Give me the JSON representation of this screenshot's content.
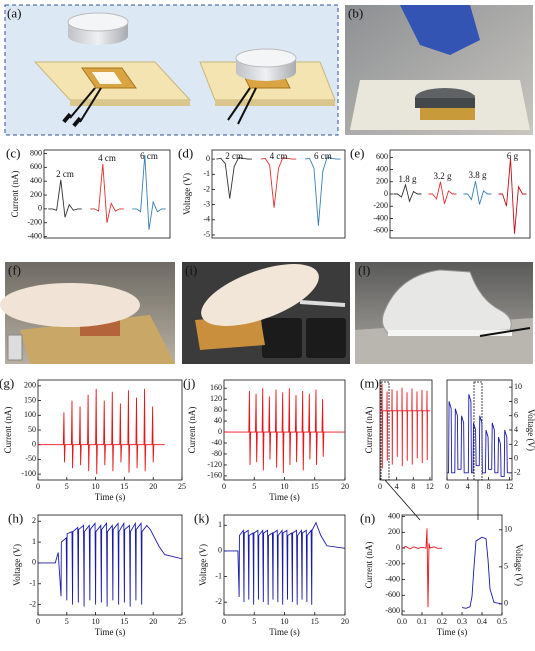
{
  "photos": [
    "(a)",
    "(b)",
    "(f)",
    "(i)",
    "(l)"
  ],
  "charts": [
    {
      "type": "line",
      "label": "(c)",
      "ylabel": "Current (nA)",
      "ylim": [
        -420,
        850
      ],
      "yticks": [
        -400,
        -200,
        0,
        200,
        400,
        600,
        800
      ],
      "series": [
        {
          "name": "2 cm",
          "color": "#333333",
          "values": [
            0,
            0,
            -20,
            420,
            -120,
            60,
            -20,
            0,
            0
          ]
        },
        {
          "name": "4 cm",
          "color": "#e03030",
          "values": [
            0,
            0,
            -30,
            650,
            -200,
            80,
            -30,
            0,
            0
          ]
        },
        {
          "name": "6 cm",
          "color": "#3a7fb5",
          "values": [
            0,
            0,
            -40,
            780,
            -300,
            100,
            -40,
            0,
            0
          ]
        }
      ]
    },
    {
      "type": "line",
      "label": "(d)",
      "ylabel": "Voltage (V)",
      "ylim": [
        -5.2,
        0.6
      ],
      "yticks": [
        0,
        -1,
        -2,
        -3,
        -4,
        -5
      ],
      "series": [
        {
          "name": "2 cm",
          "color": "#333333",
          "values": [
            0,
            0.05,
            -0.3,
            -2.6,
            -0.5,
            0.1,
            0.05,
            0,
            0
          ]
        },
        {
          "name": "4 cm",
          "color": "#e03030",
          "values": [
            0,
            0.05,
            -0.4,
            -3.2,
            -0.6,
            0.1,
            0.05,
            0,
            0
          ]
        },
        {
          "name": "6 cm",
          "color": "#3a7fb5",
          "values": [
            0,
            0.05,
            -0.6,
            -4.4,
            -0.8,
            0.15,
            0.05,
            0,
            0
          ]
        }
      ]
    },
    {
      "type": "line",
      "label": "(e)",
      "ylim": [
        -720,
        720
      ],
      "yticks": [
        -600,
        -400,
        -200,
        0,
        200,
        400,
        600
      ],
      "series": [
        {
          "name": "1.8 g",
          "color": "#333333",
          "values": [
            0,
            0,
            -50,
            150,
            -120,
            40,
            0,
            0
          ]
        },
        {
          "name": "3.2 g",
          "color": "#e03030",
          "values": [
            0,
            0,
            -80,
            200,
            -160,
            50,
            0,
            0
          ]
        },
        {
          "name": "3.8 g",
          "color": "#3a7fb5",
          "values": [
            0,
            0,
            -90,
            210,
            -170,
            50,
            0,
            0
          ]
        },
        {
          "name": "6 g",
          "color": "#c0101a",
          "values": [
            0,
            0,
            -200,
            580,
            -650,
            120,
            0,
            0
          ]
        }
      ]
    },
    {
      "type": "line",
      "label": "(g)",
      "ylabel": "Current (nA)",
      "xlabel": "Time (s)",
      "xlim": [
        0,
        25
      ],
      "xticks": [
        0,
        5,
        10,
        15,
        20,
        25
      ],
      "ylim": [
        -120,
        220
      ],
      "yticks": [
        -100,
        -50,
        0,
        50,
        100,
        150,
        200
      ],
      "series": [
        {
          "color": "#e8141a",
          "x": [
            0,
            4.4,
            4.5,
            4.6,
            4.7,
            5.8,
            5.9,
            6.0,
            6.1,
            7.2,
            7.3,
            7.4,
            7.5,
            8.6,
            8.7,
            8.8,
            8.9,
            10.0,
            10.1,
            10.2,
            10.3,
            11.4,
            11.5,
            11.6,
            11.7,
            12.8,
            12.9,
            13.0,
            13.1,
            14.2,
            14.3,
            14.4,
            14.5,
            15.6,
            15.7,
            15.8,
            15.9,
            17.0,
            17.1,
            17.2,
            17.3,
            18.4,
            18.5,
            18.6,
            18.7,
            19.8,
            19.9,
            20.0,
            20.1,
            22
          ],
          "values": [
            0,
            0,
            110,
            -60,
            0,
            0,
            150,
            -80,
            0,
            0,
            130,
            -70,
            0,
            0,
            170,
            -90,
            0,
            0,
            190,
            -100,
            0,
            0,
            150,
            -70,
            0,
            0,
            180,
            -90,
            0,
            0,
            140,
            -60,
            0,
            0,
            185,
            -95,
            0,
            0,
            160,
            -80,
            0,
            0,
            190,
            -90,
            0,
            0,
            130,
            -60,
            0,
            0
          ]
        }
      ]
    },
    {
      "type": "line",
      "label": "(j)",
      "ylabel": "Current (nA)",
      "xlabel": "Time (s)",
      "xlim": [
        0,
        20
      ],
      "xticks": [
        0,
        5,
        10,
        15,
        20
      ],
      "ylim": [
        -175,
        190
      ],
      "yticks": [
        -160,
        -120,
        -80,
        -40,
        0,
        40,
        80,
        120,
        160
      ],
      "series": [
        {
          "color": "#e8141a",
          "x": [
            0,
            4.1,
            4.2,
            4.3,
            4.4,
            5.2,
            5.3,
            5.4,
            5.5,
            6.3,
            6.4,
            6.5,
            6.6,
            7.4,
            7.5,
            7.6,
            7.7,
            8.5,
            8.6,
            8.7,
            8.8,
            9.6,
            9.7,
            9.8,
            9.9,
            10.7,
            10.8,
            10.9,
            11.0,
            11.8,
            11.9,
            12.0,
            12.1,
            12.9,
            13.0,
            13.1,
            13.2,
            14.0,
            14.1,
            14.2,
            14.3,
            15.1,
            15.2,
            15.3,
            15.4,
            16.2,
            16.3,
            16.4,
            16.5,
            20
          ],
          "values": [
            0,
            0,
            150,
            -120,
            0,
            0,
            140,
            -110,
            0,
            0,
            160,
            -140,
            0,
            0,
            130,
            -100,
            0,
            0,
            155,
            -130,
            0,
            0,
            145,
            -150,
            0,
            0,
            160,
            -120,
            0,
            0,
            135,
            -110,
            0,
            0,
            150,
            -140,
            0,
            0,
            140,
            -100,
            0,
            0,
            155,
            -120,
            0,
            0,
            120,
            -90,
            0,
            0
          ]
        }
      ]
    },
    {
      "type": "line",
      "label": "(m)",
      "ylabel": "Current (nA)",
      "xlim": [
        0,
        12.5
      ],
      "xticks": [
        0,
        4,
        8,
        12
      ],
      "ylim": [
        -900,
        400
      ],
      "series": [
        {
          "color": "#e8141a",
          "x": [
            0,
            0.45,
            0.5,
            0.55,
            0.6,
            1.65,
            1.7,
            1.75,
            1.8,
            2.85,
            2.9,
            2.95,
            3.0,
            4.05,
            4.1,
            4.15,
            4.2,
            5.25,
            5.3,
            5.35,
            5.4,
            6.45,
            6.5,
            6.55,
            6.6,
            7.65,
            7.7,
            7.75,
            7.8,
            8.85,
            8.9,
            8.95,
            9.0,
            10.05,
            10.1,
            10.15,
            10.2,
            11.25,
            11.3,
            11.35,
            11.4,
            12
          ],
          "values": [
            0,
            0,
            350,
            -750,
            0,
            0,
            250,
            -650,
            0,
            0,
            280,
            -700,
            0,
            0,
            260,
            -600,
            0,
            0,
            300,
            -720,
            0,
            0,
            240,
            -650,
            0,
            0,
            290,
            -700,
            0,
            0,
            250,
            -620,
            0,
            0,
            270,
            -680,
            0,
            0,
            260,
            -640,
            0,
            0
          ]
        }
      ]
    },
    {
      "type": "line",
      "y2label": "Voltage (V)",
      "xlim": [
        0,
        12.5
      ],
      "xticks": [
        0,
        4,
        8,
        12
      ],
      "y2lim": [
        -3,
        11
      ],
      "y2ticks": [
        -2,
        0,
        2,
        4,
        6,
        8,
        10
      ],
      "series": [
        {
          "color": "#1a1aa8",
          "axis": "y2",
          "x": [
            0,
            0.3,
            0.4,
            0.8,
            0.9,
            1.5,
            1.6,
            2.0,
            2.1,
            2.7,
            2.8,
            3.2,
            3.3,
            4.1,
            4.2,
            4.6,
            4.7,
            5.0,
            5.1,
            5.5,
            5.6,
            6.2,
            6.3,
            6.7,
            6.8,
            7.4,
            7.5,
            7.9,
            8.0,
            8.6,
            8.7,
            9.1,
            9.2,
            9.8,
            9.9,
            10.3,
            10.4,
            11.0,
            11.1,
            11.5,
            11.6,
            12
          ],
          "values": [
            -2,
            -2,
            8,
            7,
            -2,
            -2,
            7,
            6,
            -1.5,
            -1.5,
            6,
            5,
            -2,
            -2,
            9,
            8,
            -2,
            -2,
            5,
            4,
            -1,
            -1,
            6,
            5,
            -2,
            -2,
            4,
            3,
            -1.5,
            -1.5,
            5,
            4,
            -2,
            -2,
            3,
            2,
            -2.5,
            -2.5,
            4,
            3,
            -2,
            -2
          ]
        }
      ]
    },
    {
      "type": "line",
      "label": "(h)",
      "ylabel": "Voltage (V)",
      "xlabel": "Time (s)",
      "xlim": [
        0,
        25
      ],
      "xticks": [
        0,
        5,
        10,
        15,
        20,
        25
      ],
      "ylim": [
        -2.5,
        2.3
      ],
      "yticks": [
        -2,
        -1,
        0,
        1,
        2
      ],
      "series": [
        {
          "color": "#1a1aa8",
          "x": [
            0,
            3,
            3.5,
            4,
            4.05,
            4.9,
            5,
            5.05,
            5.9,
            6,
            6.05,
            6.9,
            7,
            7.05,
            7.9,
            8,
            8.05,
            8.9,
            9,
            9.05,
            9.9,
            10,
            10.05,
            10.9,
            11,
            11.05,
            11.9,
            12,
            12.05,
            12.9,
            13,
            13.05,
            13.9,
            14,
            14.05,
            14.9,
            15,
            15.05,
            15.9,
            16,
            16.05,
            16.9,
            17,
            17.05,
            17.9,
            18,
            18.05,
            18.9,
            19.5,
            21,
            22,
            25
          ],
          "values": [
            0,
            0,
            0.5,
            -1.6,
            1.0,
            1.2,
            -1.8,
            1.4,
            1.5,
            -2.0,
            1.5,
            1.7,
            -1.9,
            1.6,
            1.8,
            -2.1,
            1.5,
            1.8,
            -1.8,
            1.6,
            1.9,
            -2.0,
            1.5,
            1.8,
            -1.9,
            1.6,
            1.9,
            -2.1,
            1.5,
            1.8,
            -1.8,
            1.6,
            1.9,
            -2.0,
            1.5,
            1.9,
            -1.9,
            1.6,
            1.8,
            -2.1,
            1.5,
            1.9,
            -1.8,
            1.6,
            1.9,
            -2.0,
            1.5,
            1.8,
            1.6,
            0.8,
            0.4,
            0.2
          ]
        }
      ]
    },
    {
      "type": "line",
      "label": "(k)",
      "ylabel": "Voltage (V)",
      "xlabel": "Time (s)",
      "xlim": [
        0,
        20
      ],
      "xticks": [
        0,
        5,
        10,
        15,
        20
      ],
      "ylim": [
        -2.5,
        1.4
      ],
      "yticks": [
        -2,
        -1,
        0,
        1
      ],
      "series": [
        {
          "color": "#1a1aa8",
          "x": [
            0,
            2.3,
            2.5,
            2.55,
            3.2,
            3.3,
            3.35,
            4.0,
            4.1,
            4.15,
            4.8,
            4.9,
            4.95,
            5.6,
            5.7,
            5.75,
            6.4,
            6.5,
            6.55,
            7.2,
            7.3,
            7.35,
            8.0,
            8.1,
            8.15,
            8.8,
            8.9,
            8.95,
            9.6,
            9.7,
            9.75,
            10.4,
            10.5,
            10.55,
            11.2,
            11.3,
            11.35,
            12.0,
            12.1,
            12.15,
            12.8,
            12.9,
            12.95,
            13.6,
            13.7,
            13.75,
            14.4,
            14.5,
            14.55,
            15.2,
            16,
            17,
            20
          ],
          "values": [
            0,
            0,
            -1.8,
            0.6,
            0.8,
            -2.0,
            0.7,
            0.8,
            -1.9,
            0.6,
            0.7,
            -2.1,
            0.7,
            0.8,
            -1.9,
            0.6,
            0.8,
            -2.0,
            0.7,
            0.8,
            -2.1,
            0.6,
            0.7,
            -1.9,
            0.7,
            0.8,
            -2.0,
            0.6,
            0.8,
            -2.1,
            0.7,
            0.8,
            -1.9,
            0.6,
            0.7,
            -2.0,
            0.7,
            0.8,
            -2.1,
            0.6,
            0.8,
            -1.9,
            0.7,
            0.8,
            -2.0,
            0.6,
            0.8,
            -2.1,
            0.8,
            1.1,
            0.6,
            0.2,
            0.1
          ]
        }
      ]
    },
    {
      "type": "line",
      "label": "(n)",
      "ylabel": "Current (nA)",
      "y2label": "Voltage (V)",
      "xlabel": "Time (s)",
      "xlim": [
        0,
        0.5
      ],
      "xticks": [
        {
          "value": 0,
          "label": "0.0"
        },
        0.1,
        0.2,
        0.3,
        0.4,
        0.5
      ],
      "ylim": [
        -850,
        420
      ],
      "yticks": [
        -800,
        -600,
        -400,
        -200,
        0,
        200,
        400
      ],
      "y2lim": [
        -1.5,
        12
      ],
      "y2ticks": [
        0,
        5,
        10
      ],
      "series": [
        {
          "color": "#e8141a",
          "x": [
            0,
            0.02,
            0.04,
            0.06,
            0.08,
            0.1,
            0.12,
            0.125,
            0.13,
            0.135,
            0.14,
            0.16,
            0.18,
            0.2
          ],
          "values": [
            0,
            20,
            -10,
            15,
            -5,
            10,
            0,
            250,
            -750,
            60,
            0,
            15,
            -5,
            0
          ]
        },
        {
          "color": "#1a1aa8",
          "axis": "y2",
          "x": [
            0.3,
            0.32,
            0.34,
            0.35,
            0.36,
            0.37,
            0.4,
            0.42,
            0.43,
            0.44,
            0.46,
            0.5
          ],
          "values": [
            -0.5,
            -0.6,
            -0.4,
            1,
            5,
            8.5,
            9,
            8.8,
            6,
            2,
            0.2,
            0
          ]
        }
      ]
    }
  ]
}
